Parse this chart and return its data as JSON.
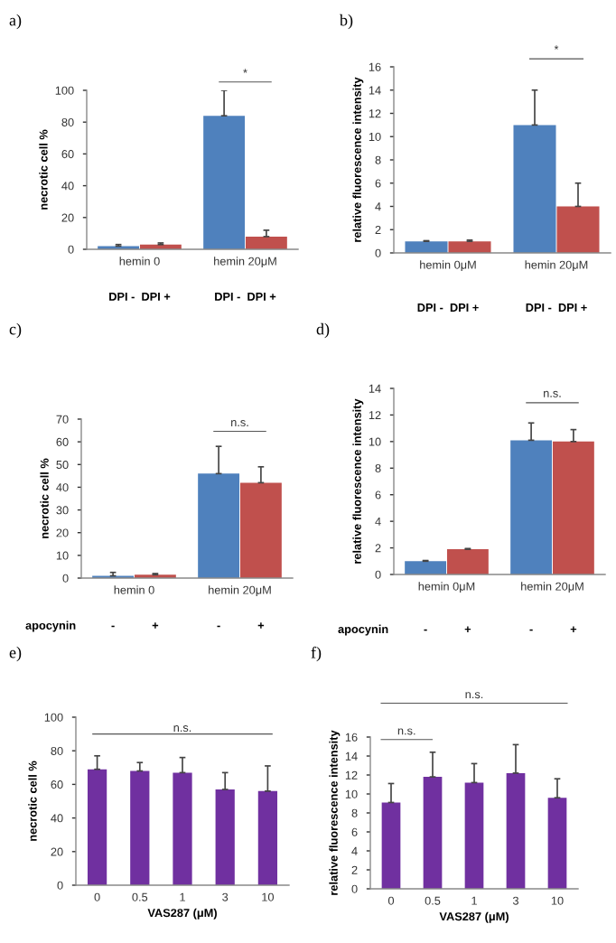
{
  "chart_data": [
    {
      "type": "bar",
      "title": "a)",
      "ylabel": "necrotic cell %",
      "categories": [
        "hemin 0",
        "hemin 20μM"
      ],
      "ylim": [
        0,
        100
      ],
      "yticks": [
        0,
        20,
        40,
        60,
        80,
        100
      ],
      "series": [
        {
          "color": "#4f81bd",
          "values": [
            2,
            84
          ],
          "errors": [
            1,
            16
          ]
        },
        {
          "color": "#c0504d",
          "values": [
            3,
            8
          ],
          "errors": [
            1,
            4
          ]
        }
      ],
      "annotations": [
        "*",
        "DPI -  DPI +",
        "DPI -  DPI +"
      ]
    },
    {
      "type": "bar",
      "title": "b)",
      "ylabel": "relative fluorescence intensity",
      "categories": [
        "hemin 0μM",
        "hemin 20μM"
      ],
      "ylim": [
        0,
        16
      ],
      "yticks": [
        0,
        2,
        4,
        6,
        8,
        10,
        12,
        14,
        16
      ],
      "series": [
        {
          "color": "#4f81bd",
          "values": [
            1,
            11
          ],
          "errors": [
            0.05,
            3
          ]
        },
        {
          "color": "#c0504d",
          "values": [
            1,
            4
          ],
          "errors": [
            0.1,
            2
          ]
        }
      ],
      "annotations": [
        "*",
        "DPI -  DPI +",
        "DPI -  DPI +"
      ]
    },
    {
      "type": "bar",
      "title": "c)",
      "ylabel": "necrotic cell %",
      "categories": [
        "hemin 0",
        "hemin 20μM"
      ],
      "ylim": [
        0,
        70
      ],
      "yticks": [
        0,
        10,
        20,
        30,
        40,
        50,
        60,
        70
      ],
      "series": [
        {
          "color": "#4f81bd",
          "values": [
            1,
            46
          ],
          "errors": [
            [
              1,
              2.5
            ],
            12
          ]
        },
        {
          "color": "#c0504d",
          "values": [
            1.5,
            42
          ],
          "errors": [
            0.5,
            7
          ]
        }
      ],
      "annotations": [
        "n.s.",
        "apocynin",
        "-",
        "+",
        "-",
        "+"
      ]
    },
    {
      "type": "bar",
      "title": "d)",
      "ylabel": "relative fluorescence intensity",
      "categories": [
        "hemin 0μM",
        "hemin 20μM"
      ],
      "ylim": [
        0,
        14
      ],
      "yticks": [
        0,
        2,
        4,
        6,
        8,
        10,
        12,
        14
      ],
      "series": [
        {
          "color": "#4f81bd",
          "values": [
            1,
            10.1
          ],
          "errors": [
            0.05,
            1.3
          ]
        },
        {
          "color": "#c0504d",
          "values": [
            1.9,
            10
          ],
          "errors": [
            0.05,
            0.9
          ]
        }
      ],
      "annotations": [
        "n.s.",
        "apocynin",
        "-",
        "+",
        "-",
        "+"
      ]
    },
    {
      "type": "bar",
      "title": "e)",
      "ylabel": "necrotic cell %",
      "xlabel": "VAS287 (μM)",
      "categories": [
        "0",
        "0.5",
        "1",
        "3",
        "10"
      ],
      "ylim": [
        0,
        100
      ],
      "yticks": [
        0,
        20,
        40,
        60,
        80,
        100
      ],
      "series": [
        {
          "color": "#7030a0",
          "values": [
            69,
            68,
            67,
            57,
            56
          ],
          "errors": [
            8,
            5,
            9,
            10,
            15
          ]
        }
      ],
      "ref_lines": [
        {
          "axis": "y",
          "value": 90,
          "label": "n.s.",
          "color": "#555555"
        }
      ]
    },
    {
      "type": "bar",
      "title": "f)",
      "ylabel": "relative fluorescence intensity",
      "xlabel": "VAS287 (μM)",
      "categories": [
        "0",
        "0.5",
        "1",
        "3",
        "10"
      ],
      "ylim": [
        0,
        16
      ],
      "yticks": [
        0,
        2,
        4,
        6,
        8,
        10,
        12,
        14,
        16
      ],
      "series": [
        {
          "color": "#7030a0",
          "values": [
            9.1,
            11.8,
            11.2,
            12.2,
            9.6
          ],
          "errors": [
            2,
            2.6,
            2,
            3,
            2
          ]
        }
      ],
      "annotations": [
        "n.s.",
        "n.s."
      ]
    }
  ]
}
